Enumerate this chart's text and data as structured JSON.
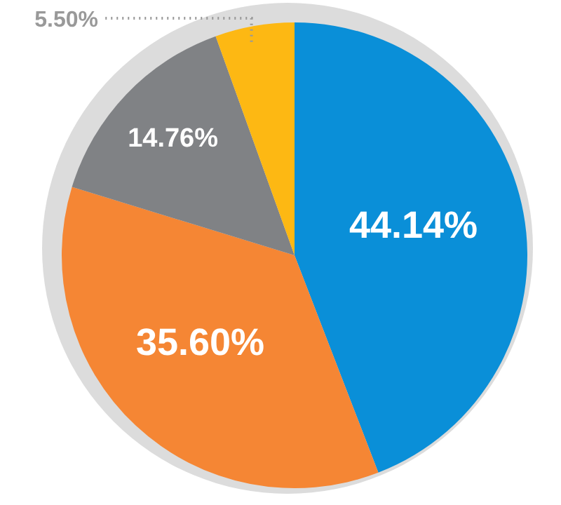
{
  "chart_data": {
    "type": "pie",
    "categories": [
      null,
      null,
      null,
      null
    ],
    "values": [
      44.14,
      35.6,
      14.76,
      5.5
    ],
    "colors": [
      "#0a8fd8",
      "#f58634",
      "#808285",
      "#fdb813"
    ],
    "data_labels": true,
    "value_labels": [
      "44.14%",
      "35.60%",
      "14.76%",
      "5.50%"
    ]
  }
}
